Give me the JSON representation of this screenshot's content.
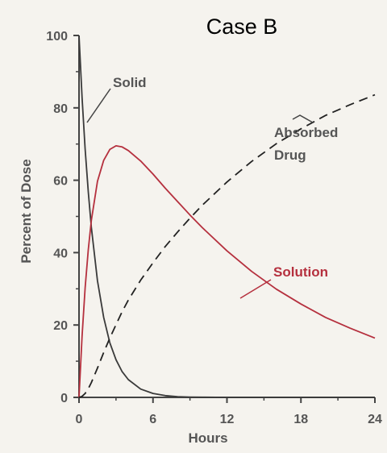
{
  "chart_data": {
    "type": "line",
    "title": "Case B",
    "xlabel": "Hours",
    "ylabel": "Percent of Dose",
    "xlim": [
      0,
      24
    ],
    "ylim": [
      0,
      100
    ],
    "xticks": [
      0,
      6,
      12,
      18,
      24
    ],
    "yticks": [
      0,
      20,
      40,
      60,
      80,
      100
    ],
    "grid": false,
    "legend": "none",
    "series": [
      {
        "name": "Solid",
        "color": "#3a3a3a",
        "style": "solid",
        "x": [
          0,
          0.25,
          0.5,
          0.75,
          1,
          1.5,
          2,
          2.5,
          3,
          3.5,
          4,
          5,
          6,
          7,
          8,
          9,
          10,
          12,
          14,
          16,
          18,
          20,
          22,
          24
        ],
        "y": [
          100,
          82.8,
          68.6,
          56.8,
          47,
          32.2,
          22.1,
          15.1,
          10.4,
          7.1,
          4.9,
          2.3,
          1.1,
          0.5,
          0.2,
          0.1,
          0.05,
          0,
          0,
          0,
          0,
          0,
          0,
          0
        ]
      },
      {
        "name": "Solution",
        "color": "#b5303e",
        "style": "solid",
        "x": [
          0,
          0.25,
          0.5,
          0.75,
          1,
          1.5,
          2,
          2.5,
          3,
          3.5,
          4,
          5,
          6,
          7,
          8,
          9,
          10,
          12,
          14,
          16,
          18,
          20,
          22,
          24
        ],
        "y": [
          0,
          16.9,
          30.3,
          40.8,
          48.9,
          59.7,
          65.5,
          68.5,
          69.5,
          69.2,
          68.2,
          65.3,
          61.7,
          57.8,
          54.1,
          50.4,
          46.9,
          40.5,
          34.8,
          29.9,
          25.8,
          22.1,
          19.1,
          16.4
        ]
      },
      {
        "name": "Absorbed Drug",
        "color": "#222222",
        "style": "dashed",
        "x": [
          0,
          0.25,
          0.5,
          0.75,
          1,
          1.5,
          2,
          2.5,
          3,
          3.5,
          4,
          5,
          6,
          7,
          8,
          9,
          10,
          12,
          14,
          16,
          18,
          20,
          22,
          24
        ],
        "y": [
          0,
          0.3,
          1.1,
          2.4,
          4.1,
          8.1,
          12.4,
          16.4,
          20.1,
          23.7,
          26.9,
          32.4,
          37.2,
          41.7,
          45.7,
          49.5,
          53.1,
          59.5,
          65.2,
          70.1,
          74.2,
          77.9,
          80.9,
          83.6
        ]
      }
    ],
    "annotations": [
      {
        "label": "Solid",
        "color": "#555555"
      },
      {
        "label": "Absorbed",
        "color": "#555555"
      },
      {
        "label": "Drug",
        "color": "#555555"
      },
      {
        "label": "Solution",
        "color": "#b5303e"
      }
    ]
  }
}
